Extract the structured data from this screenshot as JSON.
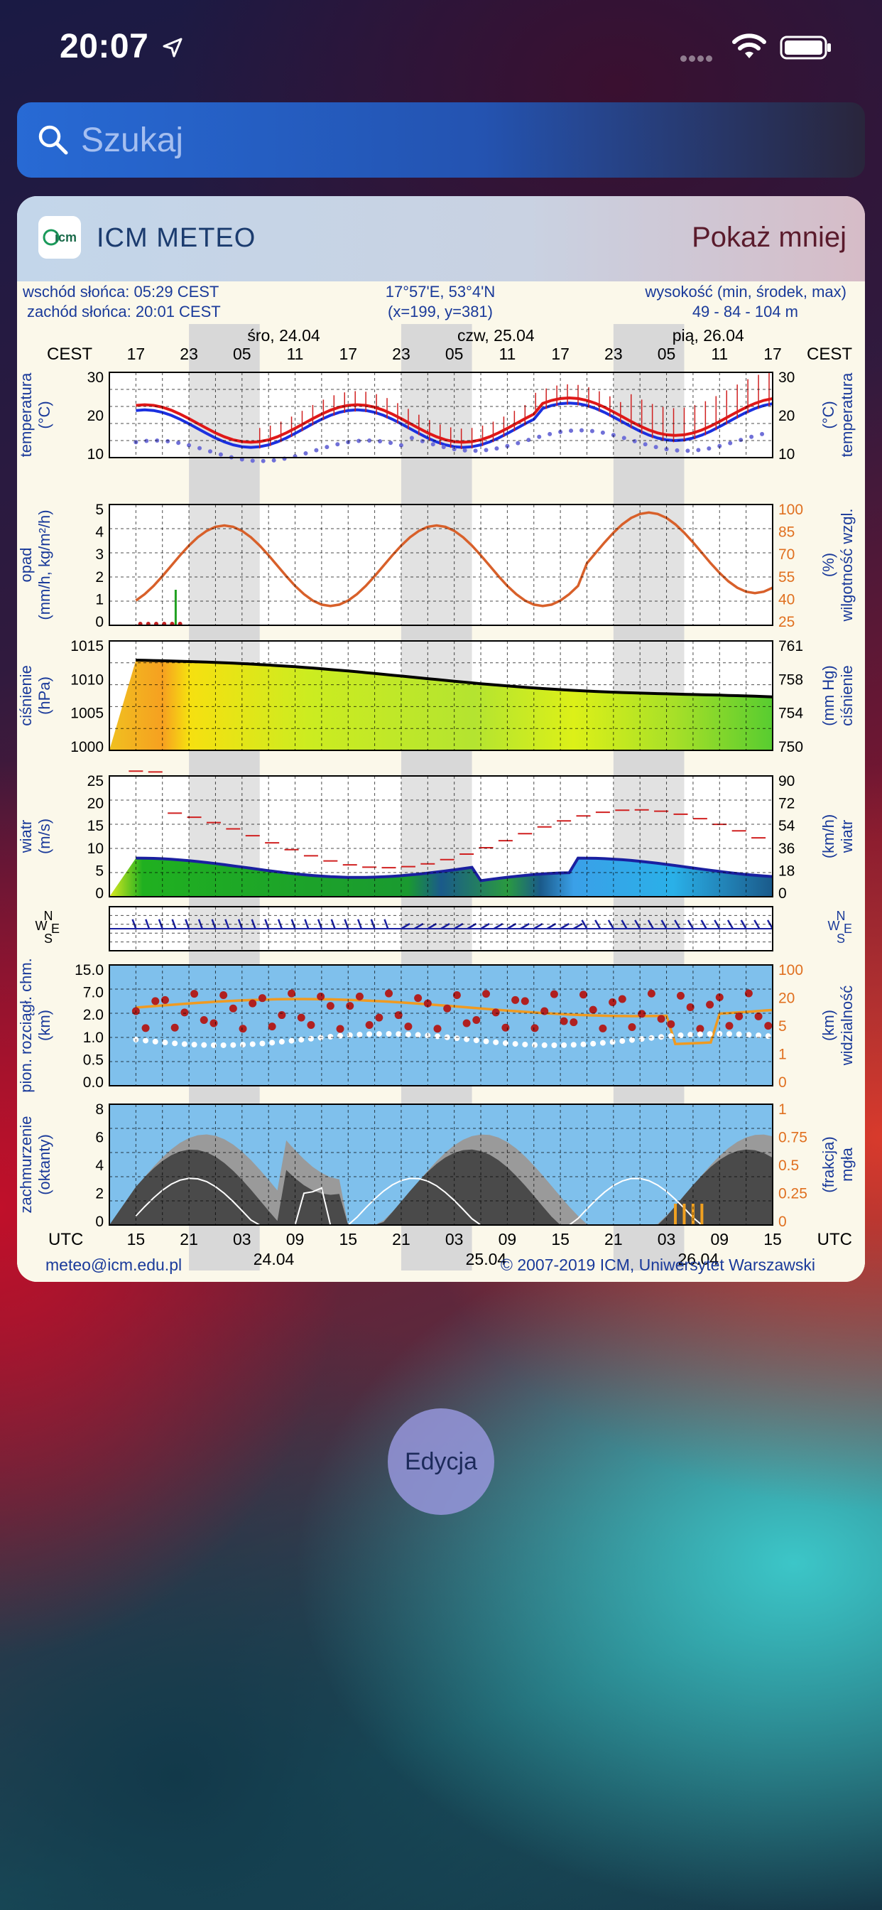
{
  "status": {
    "time": "20:07"
  },
  "search": {
    "placeholder": "Szukaj"
  },
  "widget": {
    "title": "ICM METEO",
    "toggle_label": "Pokaż mniej"
  },
  "meteogram": {
    "sunrise": "wschód słońca: 05:29 CEST",
    "sunset": "zachód słońca: 20:01 CEST",
    "coords": "17°57'E, 53°4'N",
    "grid": "(x=199, y=381)",
    "elev_label": "wysokość (min, środek, max)",
    "elev_values": "49 - 84 - 104 m",
    "tz_left": "CEST",
    "tz_right": "CEST",
    "tz_bottom": "UTC",
    "day_labels_top": [
      "śro, 24.04",
      "czw, 25.04",
      "pią, 26.04"
    ],
    "cest_hours": [
      "17",
      "23",
      "05",
      "11",
      "17",
      "23",
      "05",
      "11",
      "17",
      "23",
      "05",
      "11",
      "17"
    ],
    "utc_hours": [
      "15",
      "21",
      "03",
      "09",
      "15",
      "21",
      "03",
      "09",
      "15",
      "21",
      "03",
      "09",
      "15"
    ],
    "day_labels_bottom": [
      "24.04",
      "25.04",
      "26.04"
    ],
    "panels": {
      "temp": {
        "left": "temperatura",
        "left2": "(°C)",
        "right": "(°C)",
        "right2": "temperatura",
        "ticks_left": [
          "30",
          "20",
          "10"
        ],
        "ticks_right": [
          "30",
          "20",
          "10"
        ]
      },
      "precip": {
        "left": "opad",
        "left2": "(mm/h, kg/m²/h)",
        "right": "(%)",
        "right2": "wilgotność wzgl.",
        "ticks_left": [
          "5",
          "4",
          "3",
          "2",
          "1",
          "0"
        ],
        "ticks_right": [
          "100",
          "85",
          "70",
          "55",
          "40",
          "25"
        ]
      },
      "pressure": {
        "left": "ciśnienie",
        "left2": "(hPa)",
        "right": "(mm Hg)",
        "right2": "ciśnienie",
        "ticks_left": [
          "1015",
          "1010",
          "1005",
          "1000"
        ],
        "ticks_right": [
          "761",
          "758",
          "754",
          "750"
        ]
      },
      "wind": {
        "left": "wiatr",
        "left2": "(m/s)",
        "right": "(km/h)",
        "right2": "wiatr",
        "ticks_left": [
          "25",
          "20",
          "15",
          "10",
          "5",
          "0"
        ],
        "ticks_right": [
          "90",
          "72",
          "54",
          "36",
          "18",
          "0"
        ]
      },
      "winddir": {
        "compass_left": [
          "N",
          "W",
          "E",
          "S"
        ],
        "compass_right": [
          "N",
          "W",
          "E",
          "S"
        ]
      },
      "convection": {
        "left": "pion. rozciągł. chm.",
        "left2": "(km)",
        "right": "(km)",
        "right2": "widzialność",
        "ticks_left": [
          "15.0",
          "7.0",
          "2.0",
          "1.0",
          "0.5",
          "0.0"
        ],
        "ticks_right": [
          "100",
          "20",
          "5",
          "1",
          "0"
        ]
      },
      "clouds": {
        "left": "zachmurzenie",
        "left2": "(oktanty)",
        "right": "(frakcja)",
        "right2": "mgła",
        "ticks_left": [
          "8",
          "6",
          "4",
          "2",
          "0"
        ],
        "ticks_right": [
          "1",
          "0.75",
          "0.5",
          "0.25",
          "0"
        ]
      }
    },
    "footer_left": "meteo@icm.edu.pl",
    "footer_right": "© 2007-2019 ICM, Uniwersytet Warszawski"
  },
  "edit_button": {
    "label": "Edycja"
  }
}
